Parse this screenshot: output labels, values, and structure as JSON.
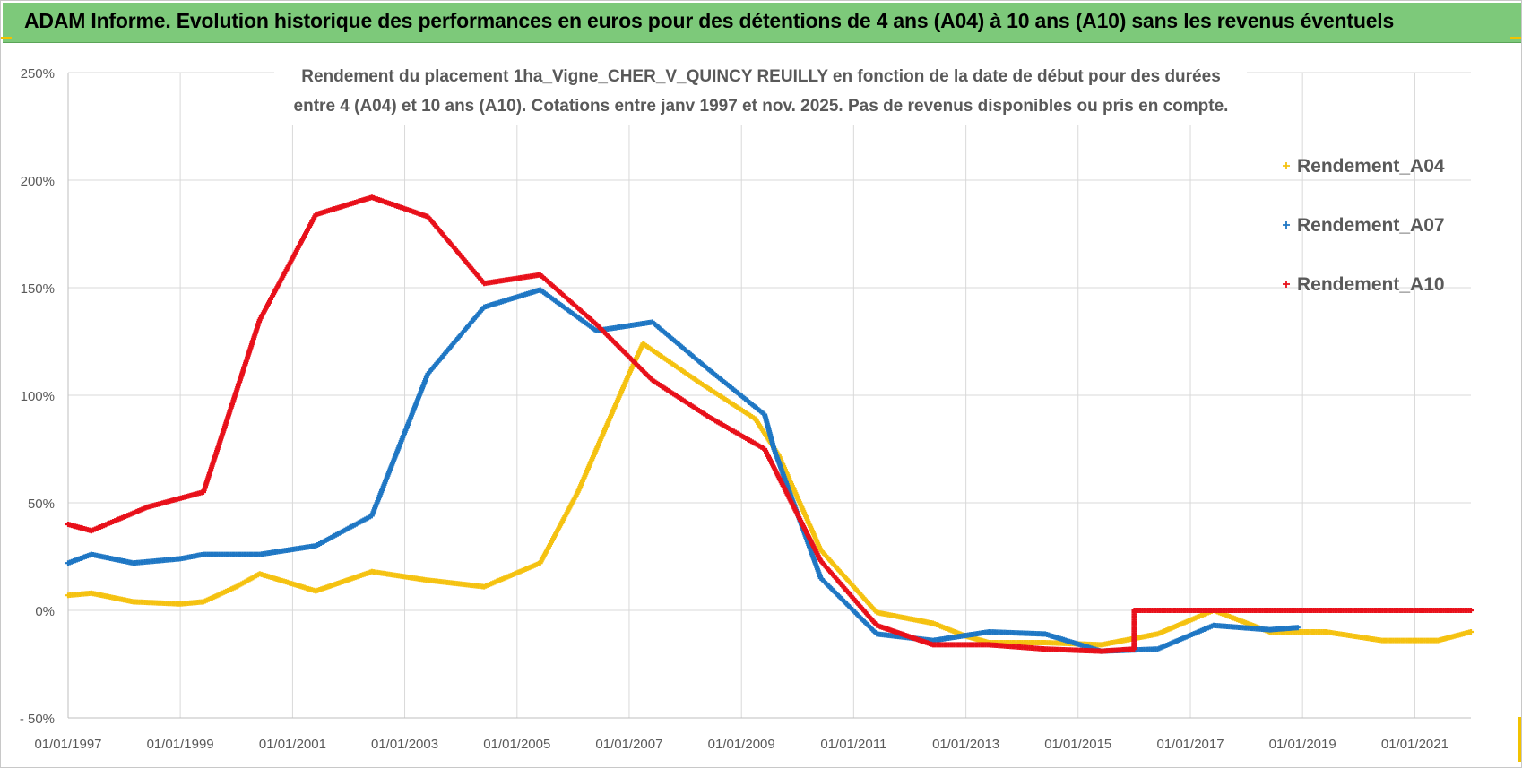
{
  "banner": {
    "text": "ADAM Informe. Evolution historique des performances en euros pour des détentions de 4 ans (A04) à 10 ans (A10) sans les revenus éventuels",
    "color": "#7dc97a"
  },
  "chart_data": {
    "type": "scatter",
    "title_lines": [
      "Rendement du placement 1ha_Vigne_CHER_V_QUINCY REUILLY en fonction de la date de début pour des durées",
      "entre 4 (A04) et 10 ans (A10). Cotations entre janv 1997 et nov. 2025. Pas de revenus disponibles ou pris en compte."
    ],
    "x_axis": {
      "type": "date",
      "range": [
        "1997-01-01",
        "2022-01-01"
      ],
      "tick_dates": [
        "1997-01-01",
        "1999-01-01",
        "2001-01-01",
        "2003-01-01",
        "2005-01-01",
        "2007-01-01",
        "2009-01-01",
        "2011-01-01",
        "2013-01-01",
        "2015-01-01",
        "2017-01-01",
        "2019-01-01",
        "2021-01-01"
      ],
      "tick_labels": [
        "01/01/1997",
        "01/01/1999",
        "01/01/2001",
        "01/01/2003",
        "01/01/2005",
        "01/01/2007",
        "01/01/2009",
        "01/01/2011",
        "01/01/2013",
        "01/01/2015",
        "01/01/2017",
        "01/01/2019",
        "01/01/2021"
      ]
    },
    "y_axis": {
      "range": [
        -50,
        250
      ],
      "ticks": [
        -50,
        0,
        50,
        100,
        150,
        200,
        250
      ],
      "tick_labels": [
        "- 50%",
        "0%",
        "50%",
        "100%",
        "150%",
        "200%",
        "250%"
      ]
    },
    "grid": true,
    "legend_position": "top-right",
    "series": [
      {
        "name": "Rendement_A04",
        "color": "#f5c211",
        "points": [
          [
            "1997-01-01",
            7
          ],
          [
            "1997-06-01",
            8
          ],
          [
            "1998-03-01",
            4
          ],
          [
            "1999-01-01",
            3
          ],
          [
            "1999-06-01",
            4
          ],
          [
            "2000-01-01",
            11
          ],
          [
            "2000-06-01",
            17
          ],
          [
            "2001-06-01",
            9
          ],
          [
            "2002-06-01",
            18
          ],
          [
            "2003-06-01",
            14
          ],
          [
            "2004-06-01",
            11
          ],
          [
            "2005-06-01",
            22
          ],
          [
            "2006-02-01",
            55
          ],
          [
            "2006-09-01",
            90
          ],
          [
            "2007-01-01",
            110
          ],
          [
            "2007-04-01",
            124
          ],
          [
            "2008-04-01",
            106
          ],
          [
            "2009-04-01",
            89
          ],
          [
            "2009-09-01",
            72
          ],
          [
            "2010-06-01",
            28
          ],
          [
            "2011-06-01",
            -1
          ],
          [
            "2012-06-01",
            -6
          ],
          [
            "2013-01-01",
            -12
          ],
          [
            "2013-06-01",
            -15
          ],
          [
            "2014-06-01",
            -15
          ],
          [
            "2015-06-01",
            -16
          ],
          [
            "2016-06-01",
            -11
          ],
          [
            "2017-06-01",
            0
          ],
          [
            "2018-06-01",
            -10
          ],
          [
            "2019-06-01",
            -10
          ],
          [
            "2020-06-01",
            -14
          ],
          [
            "2021-06-01",
            -14
          ],
          [
            "2022-01-01",
            -10
          ]
        ]
      },
      {
        "name": "Rendement_A07",
        "color": "#1f77c4",
        "points": [
          [
            "1997-01-01",
            22
          ],
          [
            "1997-06-01",
            26
          ],
          [
            "1998-03-01",
            22
          ],
          [
            "1999-01-01",
            24
          ],
          [
            "1999-06-01",
            26
          ],
          [
            "2000-06-01",
            26
          ],
          [
            "2001-06-01",
            30
          ],
          [
            "2002-06-01",
            44
          ],
          [
            "2003-06-01",
            110
          ],
          [
            "2004-06-01",
            141
          ],
          [
            "2005-06-01",
            149
          ],
          [
            "2006-06-01",
            130
          ],
          [
            "2007-06-01",
            134
          ],
          [
            "2008-06-01",
            112
          ],
          [
            "2009-06-01",
            91
          ],
          [
            "2009-08-01",
            75
          ],
          [
            "2010-06-01",
            15
          ],
          [
            "2011-06-01",
            -11
          ],
          [
            "2012-06-01",
            -14
          ],
          [
            "2013-06-01",
            -10
          ],
          [
            "2014-06-01",
            -11
          ],
          [
            "2015-06-01",
            -19
          ],
          [
            "2016-06-01",
            -18
          ],
          [
            "2017-06-01",
            -7
          ],
          [
            "2018-06-01",
            -9
          ],
          [
            "2018-12-01",
            -8
          ]
        ]
      },
      {
        "name": "Rendement_A10",
        "color": "#e8101a",
        "points": [
          [
            "1997-01-01",
            40
          ],
          [
            "1997-06-01",
            37
          ],
          [
            "1998-06-01",
            48
          ],
          [
            "1999-06-01",
            55
          ],
          [
            "2000-06-01",
            135
          ],
          [
            "2001-06-01",
            184
          ],
          [
            "2002-06-01",
            192
          ],
          [
            "2003-06-01",
            183
          ],
          [
            "2004-06-01",
            152
          ],
          [
            "2005-06-01",
            156
          ],
          [
            "2006-06-01",
            133
          ],
          [
            "2007-06-01",
            107
          ],
          [
            "2008-06-01",
            90
          ],
          [
            "2009-06-01",
            75
          ],
          [
            "2010-06-01",
            23
          ],
          [
            "2011-06-01",
            -7
          ],
          [
            "2012-06-01",
            -16
          ],
          [
            "2013-06-01",
            -16
          ],
          [
            "2014-06-01",
            -18
          ],
          [
            "2015-06-01",
            -19
          ],
          [
            "2016-01-01",
            -18
          ],
          [
            "2016-01-02",
            0
          ],
          [
            "2022-01-01",
            0
          ]
        ]
      }
    ]
  }
}
